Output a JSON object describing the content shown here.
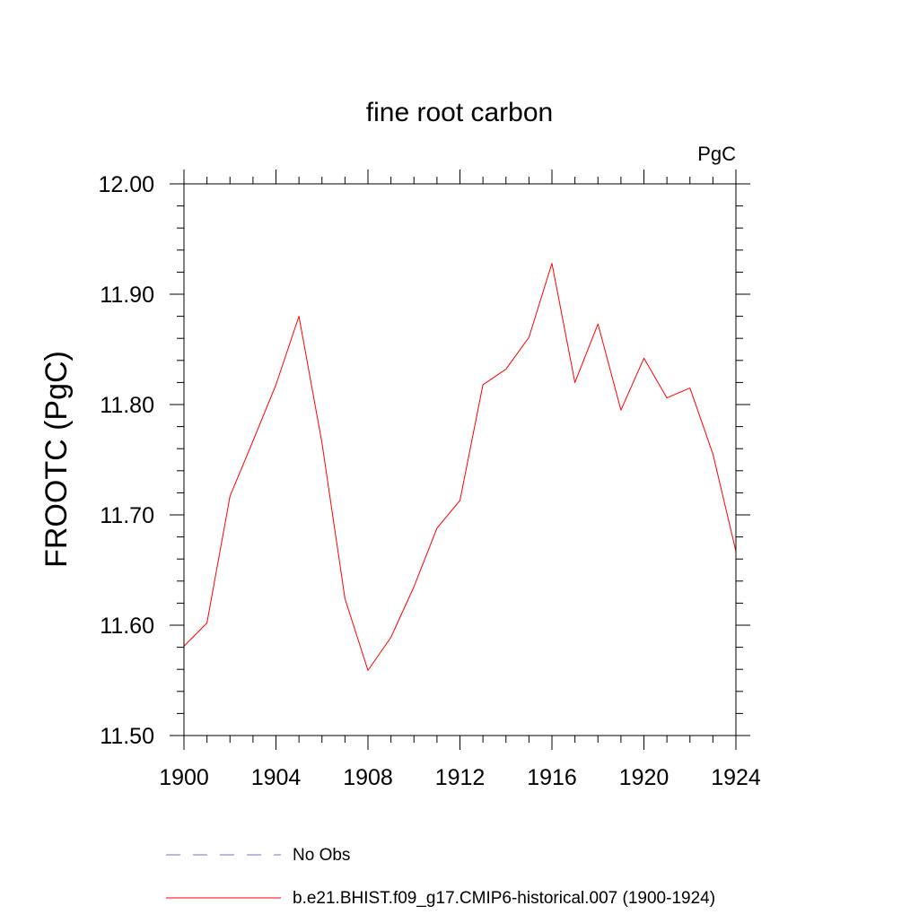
{
  "chart_data": {
    "type": "line",
    "title": "fine root carbon",
    "units": "PgC",
    "ylabel": "FROOTC  (PgC)",
    "xlabel": "",
    "xlim": [
      1900,
      1924
    ],
    "ylim": [
      11.5,
      12.0
    ],
    "x_ticks": [
      1900,
      1904,
      1908,
      1912,
      1916,
      1920,
      1924
    ],
    "x_tick_labels": [
      "1900",
      "1904",
      "1908",
      "1912",
      "1916",
      "1920",
      "1924"
    ],
    "y_ticks": [
      11.5,
      11.6,
      11.7,
      11.8,
      11.9,
      12.0
    ],
    "y_tick_labels": [
      "11.50",
      "11.60",
      "11.70",
      "11.80",
      "11.90",
      "12.00"
    ],
    "x_minor_step": 1,
    "y_minor_step": 0.02,
    "grid": false,
    "legend_position": "bottom",
    "series": [
      {
        "name": "b.e21.BHIST.f09_g17.CMIP6-historical.007 (1900-1924)",
        "color": "#ff0000",
        "style": "solid",
        "x": [
          1900,
          1901,
          1902,
          1903,
          1904,
          1905,
          1906,
          1907,
          1908,
          1909,
          1910,
          1911,
          1912,
          1913,
          1914,
          1915,
          1916,
          1917,
          1918,
          1919,
          1920,
          1921,
          1922,
          1923,
          1924
        ],
        "y": [
          11.581,
          11.602,
          11.717,
          11.767,
          11.818,
          11.88,
          11.765,
          11.624,
          11.559,
          11.589,
          11.635,
          11.688,
          11.713,
          11.818,
          11.832,
          11.861,
          11.928,
          11.82,
          11.873,
          11.795,
          11.842,
          11.806,
          11.815,
          11.755,
          11.667
        ]
      }
    ],
    "legend": [
      {
        "label": "No Obs",
        "color": "#6f6fd0",
        "style": "dashed"
      },
      {
        "label": "b.e21.BHIST.f09_g17.CMIP6-historical.007 (1900-1924)",
        "color": "#ff0000",
        "style": "solid"
      }
    ]
  }
}
